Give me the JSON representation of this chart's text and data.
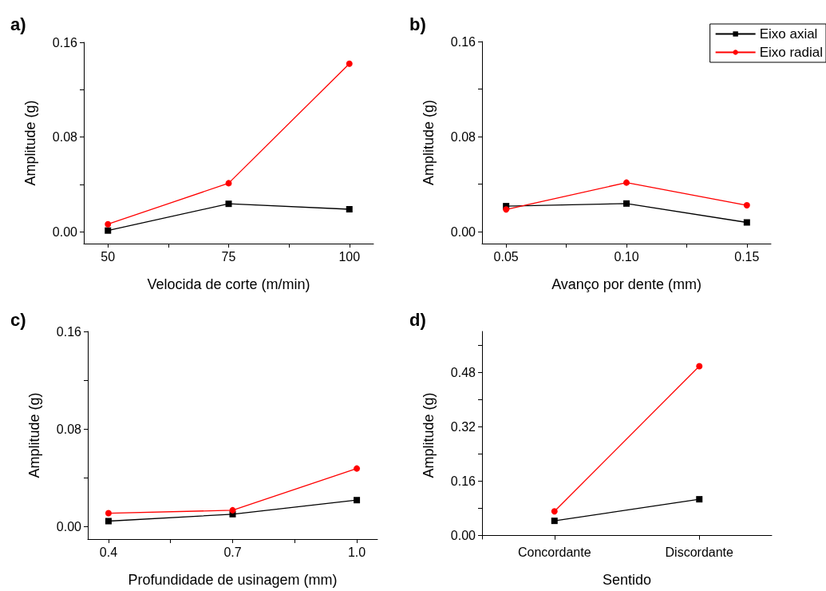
{
  "chart_data": [
    {
      "type": "line",
      "title": "a)",
      "xlabel": "Velocida de corte (m/min)",
      "ylabel": "Amplitude (g)",
      "x": [
        50,
        75,
        100
      ],
      "xlim": [
        45,
        105
      ],
      "xticks": [
        50,
        {
          "value": 62.5,
          "label": null
        },
        75,
        {
          "value": 87.5,
          "label": null
        },
        100
      ],
      "ylim": [
        -0.01,
        0.16
      ],
      "yticks": [
        {
          "value": 0,
          "label": "0.00"
        },
        {
          "value": 0.04,
          "label": null
        },
        0.08,
        {
          "value": 0.12,
          "label": null
        },
        0.16
      ],
      "legend": false,
      "series": [
        {
          "color": "#000000",
          "marker": "square",
          "values": [
            0.001,
            0.0236,
            0.019
          ]
        },
        {
          "color": "#ff0000",
          "marker": "circle",
          "values": [
            0.0064,
            0.041,
            0.142
          ]
        }
      ]
    },
    {
      "type": "line",
      "title": "b)",
      "xlabel": "Avanço por dente (mm)",
      "ylabel": "Amplitude (g)",
      "x": [
        0.05,
        0.1,
        0.15
      ],
      "xlim": [
        0.04,
        0.16
      ],
      "xticks": [
        0.05,
        {
          "value": 0.075,
          "label": null
        },
        {
          "value": 0.1,
          "label": "0.10"
        },
        {
          "value": 0.125,
          "label": null
        },
        0.15
      ],
      "ylim": [
        -0.01,
        0.16
      ],
      "yticks": [
        {
          "value": 0,
          "label": "0.00"
        },
        {
          "value": 0.04,
          "label": null
        },
        0.08,
        {
          "value": 0.12,
          "label": null
        },
        0.16
      ],
      "legend": "top right",
      "series": [
        {
          "name": "Eixo axial",
          "color": "#000000",
          "marker": "square",
          "values": [
            0.0215,
            0.0237,
            0.0078
          ]
        },
        {
          "name": "Eixo radial",
          "color": "#ff0000",
          "marker": "circle",
          "values": [
            0.0187,
            0.0413,
            0.0222
          ]
        }
      ]
    },
    {
      "type": "line",
      "title": "c)",
      "xlabel": "Profundidade de usinagem (mm)",
      "ylabel": "Amplitude (g)",
      "x": [
        0.4,
        0.7,
        1.0
      ],
      "xlim": [
        0.35,
        1.05
      ],
      "xticks": [
        0.4,
        {
          "value": 0.55,
          "label": null
        },
        0.7,
        {
          "value": 0.85,
          "label": null
        },
        {
          "value": 1.0,
          "label": "1.0"
        }
      ],
      "ylim": [
        -0.01,
        0.16
      ],
      "yticks": [
        {
          "value": 0,
          "label": "0.00"
        },
        {
          "value": 0.04,
          "label": null
        },
        0.08,
        {
          "value": 0.12,
          "label": null
        },
        0.16
      ],
      "legend": false,
      "series": [
        {
          "color": "#000000",
          "marker": "square",
          "values": [
            0.0047,
            0.0104,
            0.0219
          ]
        },
        {
          "color": "#ff0000",
          "marker": "circle",
          "values": [
            0.0112,
            0.0136,
            0.0478
          ]
        }
      ]
    },
    {
      "type": "line",
      "title": "d)",
      "xlabel": "Sentido",
      "ylabel": "Amplitude (g)",
      "categories": [
        "Concordante",
        "Discordante"
      ],
      "ylim": [
        -0.01,
        0.6
      ],
      "yticks": [
        {
          "value": 0,
          "label": "0.00"
        },
        {
          "value": 0.08,
          "label": null
        },
        0.16,
        {
          "value": 0.24,
          "label": null
        },
        0.32,
        {
          "value": 0.4,
          "label": null
        },
        0.48,
        {
          "value": 0.56,
          "label": null
        }
      ],
      "legend": false,
      "series": [
        {
          "color": "#000000",
          "marker": "square",
          "values": [
            0.0436,
            0.107
          ]
        },
        {
          "color": "#ff0000",
          "marker": "circle",
          "values": [
            0.0716,
            0.498
          ]
        }
      ]
    }
  ]
}
